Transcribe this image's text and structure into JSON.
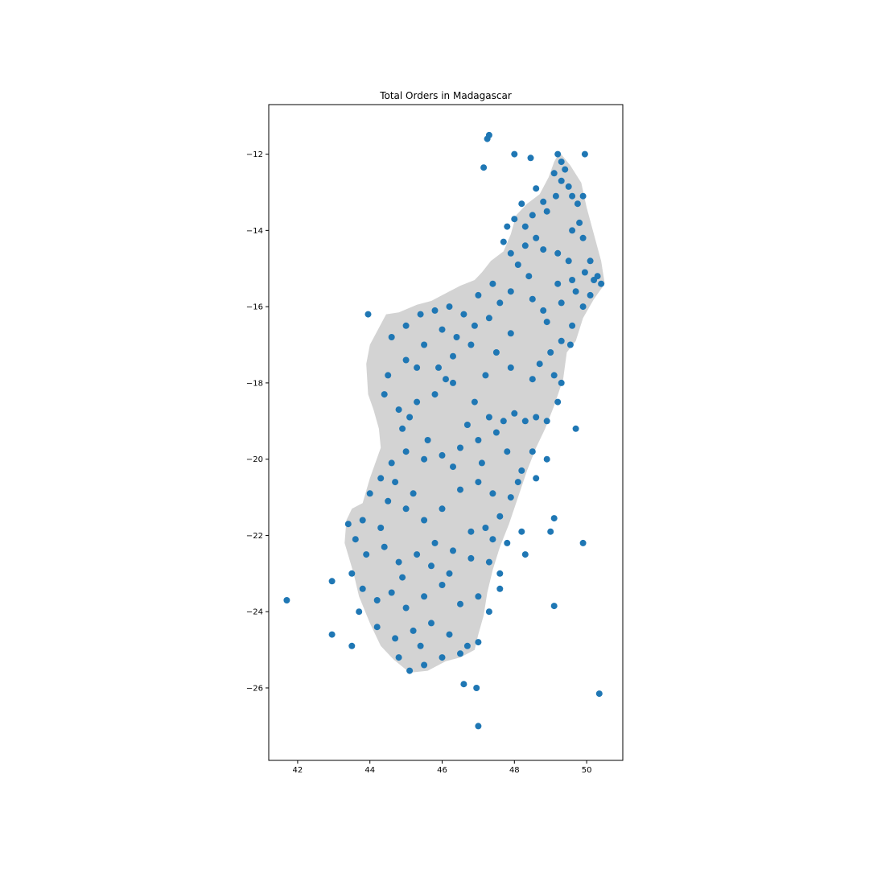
{
  "chart_data": {
    "type": "scatter",
    "title": "Total Orders in Madagascar",
    "xlabel": "",
    "ylabel": "",
    "xlim": [
      41.2,
      51.0
    ],
    "ylim": [
      -27.9,
      -10.7
    ],
    "x_ticks": [
      42,
      44,
      46,
      48,
      50
    ],
    "x_tick_labels": [
      "42",
      "44",
      "46",
      "48",
      "50"
    ],
    "y_ticks": [
      -12,
      -14,
      -16,
      -18,
      -20,
      -22,
      -24,
      -26
    ],
    "y_tick_labels": [
      "−12",
      "−14",
      "−16",
      "−18",
      "−20",
      "−22",
      "−24",
      "−26"
    ],
    "grid": false,
    "legend": "none",
    "colors": {
      "points": "#1f77b4",
      "land": "#d3d3d3",
      "frame": "#000000"
    },
    "background_shape": {
      "name": "Madagascar",
      "outline": [
        [
          49.25,
          -11.95
        ],
        [
          49.55,
          -12.3
        ],
        [
          49.85,
          -12.75
        ],
        [
          50.0,
          -13.4
        ],
        [
          50.2,
          -14.1
        ],
        [
          50.4,
          -14.8
        ],
        [
          50.5,
          -15.4
        ],
        [
          50.2,
          -15.8
        ],
        [
          49.9,
          -16.3
        ],
        [
          49.7,
          -16.9
        ],
        [
          49.45,
          -17.2
        ],
        [
          49.35,
          -17.9
        ],
        [
          49.1,
          -18.6
        ],
        [
          48.85,
          -19.2
        ],
        [
          48.6,
          -19.7
        ],
        [
          48.35,
          -20.3
        ],
        [
          48.1,
          -21.0
        ],
        [
          47.85,
          -21.7
        ],
        [
          47.6,
          -22.3
        ],
        [
          47.4,
          -22.9
        ],
        [
          47.25,
          -23.5
        ],
        [
          47.15,
          -24.1
        ],
        [
          47.0,
          -24.6
        ],
        [
          46.9,
          -25.0
        ],
        [
          46.5,
          -25.2
        ],
        [
          46.1,
          -25.3
        ],
        [
          45.6,
          -25.55
        ],
        [
          45.1,
          -25.6
        ],
        [
          44.65,
          -25.25
        ],
        [
          44.3,
          -24.9
        ],
        [
          44.0,
          -24.3
        ],
        [
          43.7,
          -23.6
        ],
        [
          43.55,
          -23.0
        ],
        [
          43.3,
          -22.2
        ],
        [
          43.35,
          -21.6
        ],
        [
          43.5,
          -21.3
        ],
        [
          43.8,
          -21.15
        ],
        [
          44.0,
          -20.5
        ],
        [
          44.3,
          -19.7
        ],
        [
          44.25,
          -19.2
        ],
        [
          44.1,
          -18.7
        ],
        [
          43.95,
          -18.3
        ],
        [
          43.9,
          -17.5
        ],
        [
          44.0,
          -17.0
        ],
        [
          44.45,
          -16.2
        ],
        [
          44.8,
          -16.15
        ],
        [
          45.3,
          -15.95
        ],
        [
          45.7,
          -15.85
        ],
        [
          46.1,
          -15.65
        ],
        [
          46.5,
          -15.45
        ],
        [
          46.9,
          -15.3
        ],
        [
          47.1,
          -15.1
        ],
        [
          47.35,
          -14.8
        ],
        [
          47.7,
          -14.55
        ],
        [
          47.9,
          -14.1
        ],
        [
          48.05,
          -13.6
        ],
        [
          48.35,
          -13.3
        ],
        [
          48.7,
          -13.05
        ],
        [
          48.95,
          -12.6
        ],
        [
          49.1,
          -12.2
        ]
      ]
    },
    "series": [
      {
        "points": [
          [
            47.3,
            -11.5
          ],
          [
            47.25,
            -11.6
          ],
          [
            47.15,
            -12.35
          ],
          [
            48.0,
            -12.0
          ],
          [
            48.45,
            -12.1
          ],
          [
            49.95,
            -12.0
          ],
          [
            49.2,
            -12.0
          ],
          [
            49.3,
            -12.2
          ],
          [
            49.4,
            -12.4
          ],
          [
            49.1,
            -12.5
          ],
          [
            49.3,
            -12.7
          ],
          [
            49.5,
            -12.85
          ],
          [
            49.15,
            -13.1
          ],
          [
            49.6,
            -13.1
          ],
          [
            49.75,
            -13.3
          ],
          [
            48.8,
            -13.25
          ],
          [
            48.2,
            -13.3
          ],
          [
            48.0,
            -13.7
          ],
          [
            48.3,
            -13.9
          ],
          [
            48.5,
            -13.6
          ],
          [
            48.9,
            -13.5
          ],
          [
            49.8,
            -13.8
          ],
          [
            49.6,
            -14.0
          ],
          [
            49.9,
            -14.2
          ],
          [
            48.6,
            -14.2
          ],
          [
            47.7,
            -14.3
          ],
          [
            47.9,
            -14.6
          ],
          [
            48.3,
            -14.4
          ],
          [
            48.8,
            -14.5
          ],
          [
            49.2,
            -14.6
          ],
          [
            49.5,
            -14.8
          ],
          [
            50.1,
            -14.8
          ],
          [
            49.95,
            -15.1
          ],
          [
            50.3,
            -15.2
          ],
          [
            50.4,
            -15.4
          ],
          [
            49.6,
            -15.3
          ],
          [
            49.2,
            -15.4
          ],
          [
            49.7,
            -15.6
          ],
          [
            50.1,
            -15.7
          ],
          [
            49.9,
            -16.0
          ],
          [
            48.8,
            -16.1
          ],
          [
            48.5,
            -15.8
          ],
          [
            47.9,
            -15.6
          ],
          [
            47.6,
            -15.9
          ],
          [
            47.3,
            -16.3
          ],
          [
            46.9,
            -16.5
          ],
          [
            46.6,
            -16.2
          ],
          [
            46.2,
            -16.0
          ],
          [
            45.8,
            -16.1
          ],
          [
            45.4,
            -16.2
          ],
          [
            45.0,
            -16.5
          ],
          [
            44.6,
            -16.8
          ],
          [
            43.95,
            -16.2
          ],
          [
            49.6,
            -16.5
          ],
          [
            49.3,
            -16.9
          ],
          [
            49.0,
            -17.2
          ],
          [
            49.55,
            -17.0
          ],
          [
            48.7,
            -17.5
          ],
          [
            49.1,
            -17.8
          ],
          [
            48.5,
            -17.9
          ],
          [
            47.9,
            -17.6
          ],
          [
            47.5,
            -17.2
          ],
          [
            47.2,
            -17.8
          ],
          [
            46.8,
            -17.0
          ],
          [
            46.3,
            -17.3
          ],
          [
            45.9,
            -17.6
          ],
          [
            45.5,
            -17.0
          ],
          [
            45.0,
            -17.4
          ],
          [
            44.5,
            -17.8
          ],
          [
            44.4,
            -18.3
          ],
          [
            44.8,
            -18.7
          ],
          [
            45.3,
            -18.5
          ],
          [
            45.8,
            -18.3
          ],
          [
            46.3,
            -18.0
          ],
          [
            46.9,
            -18.5
          ],
          [
            47.3,
            -18.9
          ],
          [
            47.7,
            -19.0
          ],
          [
            48.0,
            -18.8
          ],
          [
            48.3,
            -19.0
          ],
          [
            48.6,
            -18.9
          ],
          [
            48.9,
            -19.0
          ],
          [
            49.2,
            -18.5
          ],
          [
            49.3,
            -18.0
          ],
          [
            47.5,
            -19.3
          ],
          [
            47.0,
            -19.5
          ],
          [
            46.5,
            -19.7
          ],
          [
            46.0,
            -19.9
          ],
          [
            45.5,
            -20.0
          ],
          [
            45.0,
            -19.8
          ],
          [
            44.6,
            -20.1
          ],
          [
            44.3,
            -20.5
          ],
          [
            44.0,
            -20.9
          ],
          [
            44.5,
            -21.1
          ],
          [
            45.0,
            -21.3
          ],
          [
            45.5,
            -21.6
          ],
          [
            46.0,
            -21.3
          ],
          [
            46.5,
            -20.8
          ],
          [
            47.0,
            -20.6
          ],
          [
            47.4,
            -20.9
          ],
          [
            47.9,
            -21.0
          ],
          [
            48.2,
            -20.3
          ],
          [
            48.5,
            -19.8
          ],
          [
            48.9,
            -20.0
          ],
          [
            47.6,
            -21.5
          ],
          [
            47.2,
            -21.8
          ],
          [
            47.8,
            -22.2
          ],
          [
            48.2,
            -21.9
          ],
          [
            49.0,
            -21.9
          ],
          [
            49.1,
            -21.55
          ],
          [
            49.9,
            -22.2
          ],
          [
            43.4,
            -21.7
          ],
          [
            43.6,
            -22.1
          ],
          [
            43.9,
            -22.5
          ],
          [
            44.4,
            -22.3
          ],
          [
            44.8,
            -22.7
          ],
          [
            45.3,
            -22.5
          ],
          [
            45.8,
            -22.2
          ],
          [
            46.3,
            -22.4
          ],
          [
            46.8,
            -22.6
          ],
          [
            47.3,
            -22.7
          ],
          [
            47.6,
            -23.0
          ],
          [
            43.5,
            -23.0
          ],
          [
            43.8,
            -23.4
          ],
          [
            44.2,
            -23.7
          ],
          [
            44.6,
            -23.5
          ],
          [
            45.0,
            -23.9
          ],
          [
            45.5,
            -23.6
          ],
          [
            46.0,
            -23.3
          ],
          [
            46.5,
            -23.8
          ],
          [
            47.0,
            -23.6
          ],
          [
            47.3,
            -24.0
          ],
          [
            43.7,
            -24.0
          ],
          [
            44.2,
            -24.4
          ],
          [
            44.7,
            -24.7
          ],
          [
            45.2,
            -24.5
          ],
          [
            45.7,
            -24.3
          ],
          [
            46.2,
            -24.6
          ],
          [
            46.7,
            -24.9
          ],
          [
            47.0,
            -24.8
          ],
          [
            46.5,
            -25.1
          ],
          [
            46.0,
            -25.2
          ],
          [
            45.5,
            -25.4
          ],
          [
            45.1,
            -25.55
          ],
          [
            44.8,
            -25.2
          ],
          [
            41.7,
            -23.7
          ],
          [
            42.95,
            -23.2
          ],
          [
            42.95,
            -24.6
          ],
          [
            43.5,
            -24.9
          ],
          [
            46.6,
            -25.9
          ],
          [
            46.95,
            -26.0
          ],
          [
            47.0,
            -27.0
          ],
          [
            50.35,
            -26.15
          ],
          [
            49.1,
            -23.85
          ],
          [
            49.7,
            -19.2
          ],
          [
            50.2,
            -15.3
          ],
          [
            48.4,
            -15.2
          ],
          [
            47.0,
            -15.7
          ],
          [
            46.0,
            -16.6
          ],
          [
            45.3,
            -17.6
          ],
          [
            44.9,
            -19.2
          ],
          [
            45.6,
            -19.5
          ],
          [
            46.7,
            -19.1
          ],
          [
            47.8,
            -19.8
          ],
          [
            48.1,
            -20.6
          ],
          [
            46.8,
            -21.9
          ],
          [
            45.7,
            -22.8
          ],
          [
            44.9,
            -23.1
          ],
          [
            46.2,
            -23.0
          ],
          [
            47.4,
            -22.1
          ],
          [
            45.4,
            -24.9
          ],
          [
            44.3,
            -21.8
          ],
          [
            43.8,
            -21.6
          ],
          [
            47.6,
            -23.4
          ],
          [
            48.3,
            -22.5
          ],
          [
            47.9,
            -16.7
          ],
          [
            48.9,
            -16.4
          ],
          [
            49.3,
            -15.9
          ],
          [
            49.9,
            -13.1
          ],
          [
            48.6,
            -12.9
          ],
          [
            47.8,
            -13.9
          ],
          [
            48.1,
            -14.9
          ],
          [
            47.4,
            -15.4
          ],
          [
            46.4,
            -16.8
          ],
          [
            46.1,
            -17.9
          ],
          [
            45.1,
            -18.9
          ],
          [
            44.7,
            -20.6
          ],
          [
            45.2,
            -20.9
          ],
          [
            46.3,
            -20.2
          ],
          [
            47.1,
            -20.1
          ],
          [
            48.6,
            -20.5
          ]
        ]
      }
    ]
  }
}
